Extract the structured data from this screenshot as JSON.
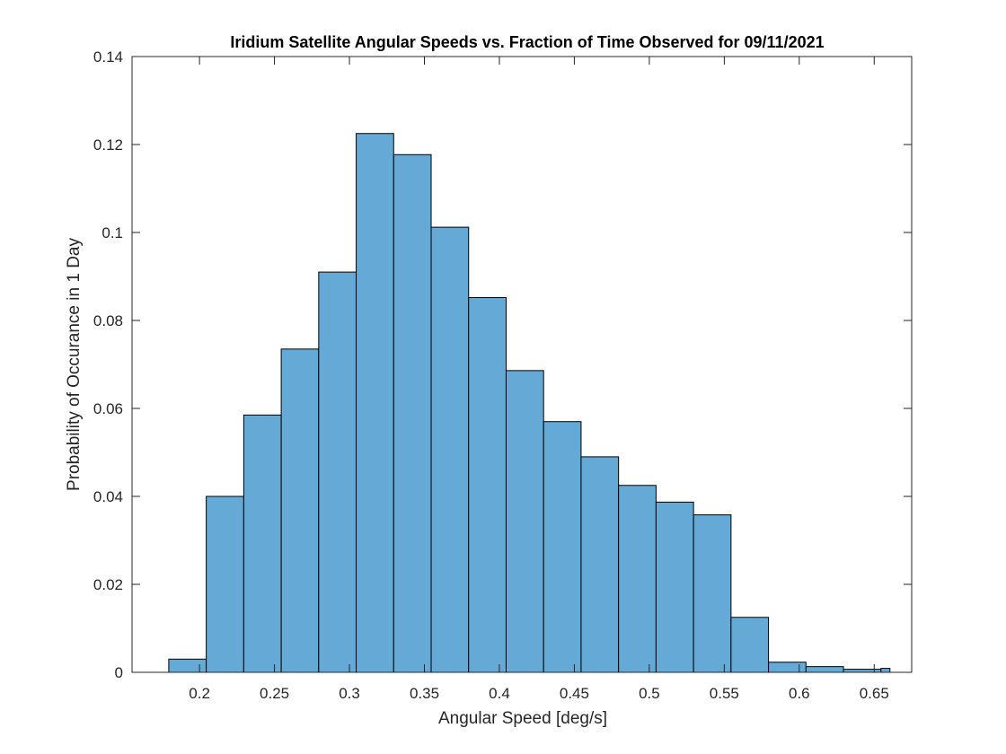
{
  "chart_data": {
    "type": "bar",
    "title": "Iridium Satellite Angular Speeds vs. Fraction of Time Observed for 09/11/2021",
    "xlabel": "Angular Speed [deg/s]",
    "ylabel": "Probability of Occurance in 1 Day",
    "xlim": [
      0.155,
      0.675
    ],
    "ylim": [
      0,
      0.14
    ],
    "xticks": [
      0.2,
      0.25,
      0.3,
      0.35,
      0.4,
      0.45,
      0.5,
      0.55,
      0.6,
      0.65
    ],
    "xtick_labels": [
      "0.2",
      "0.25",
      "0.3",
      "0.35",
      "0.4",
      "0.45",
      "0.5",
      "0.55",
      "0.6",
      "0.65"
    ],
    "yticks": [
      0,
      0.02,
      0.04,
      0.06,
      0.08,
      0.1,
      0.12,
      0.14
    ],
    "ytick_labels": [
      "0",
      "0.02",
      "0.04",
      "0.06",
      "0.08",
      "0.1",
      "0.12",
      "0.14"
    ],
    "bin_edges": [
      0.1795,
      0.2045,
      0.2295,
      0.2545,
      0.2795,
      0.3045,
      0.3295,
      0.3545,
      0.3795,
      0.4045,
      0.4295,
      0.4545,
      0.4795,
      0.5045,
      0.5295,
      0.5545,
      0.5795,
      0.6045,
      0.6295,
      0.6545
    ],
    "values": [
      0.003,
      0.04,
      0.0585,
      0.0735,
      0.091,
      0.1225,
      0.1177,
      0.1012,
      0.0852,
      0.0686,
      0.057,
      0.049,
      0.0425,
      0.0387,
      0.0358,
      0.0125,
      0.0023,
      0.0013,
      0.0007,
      0.0009
    ],
    "last_edge": 0.6605,
    "color": "#65a9d7",
    "grid": false
  }
}
